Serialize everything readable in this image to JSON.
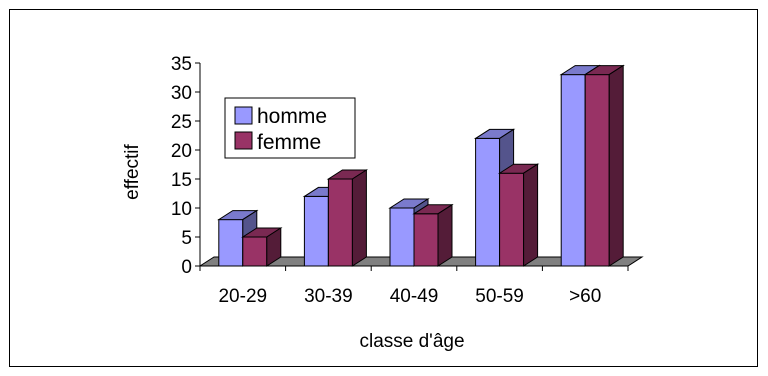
{
  "chart_data": {
    "type": "bar",
    "categories": [
      "20-29",
      "30-39",
      "40-49",
      "50-59",
      ">60"
    ],
    "series": [
      {
        "name": "homme",
        "values": [
          8,
          12,
          10,
          22,
          33
        ],
        "color": "#9999ff"
      },
      {
        "name": "femme",
        "values": [
          5,
          15,
          9,
          16,
          33
        ],
        "color": "#993366"
      }
    ],
    "xlabel": "classe d'âge",
    "ylabel": "effectif",
    "ylim": [
      0,
      35
    ],
    "yticks": [
      0,
      5,
      10,
      15,
      20,
      25,
      30,
      35
    ],
    "legend_position": "top-left",
    "grid": false,
    "floor_color": "#808080"
  }
}
